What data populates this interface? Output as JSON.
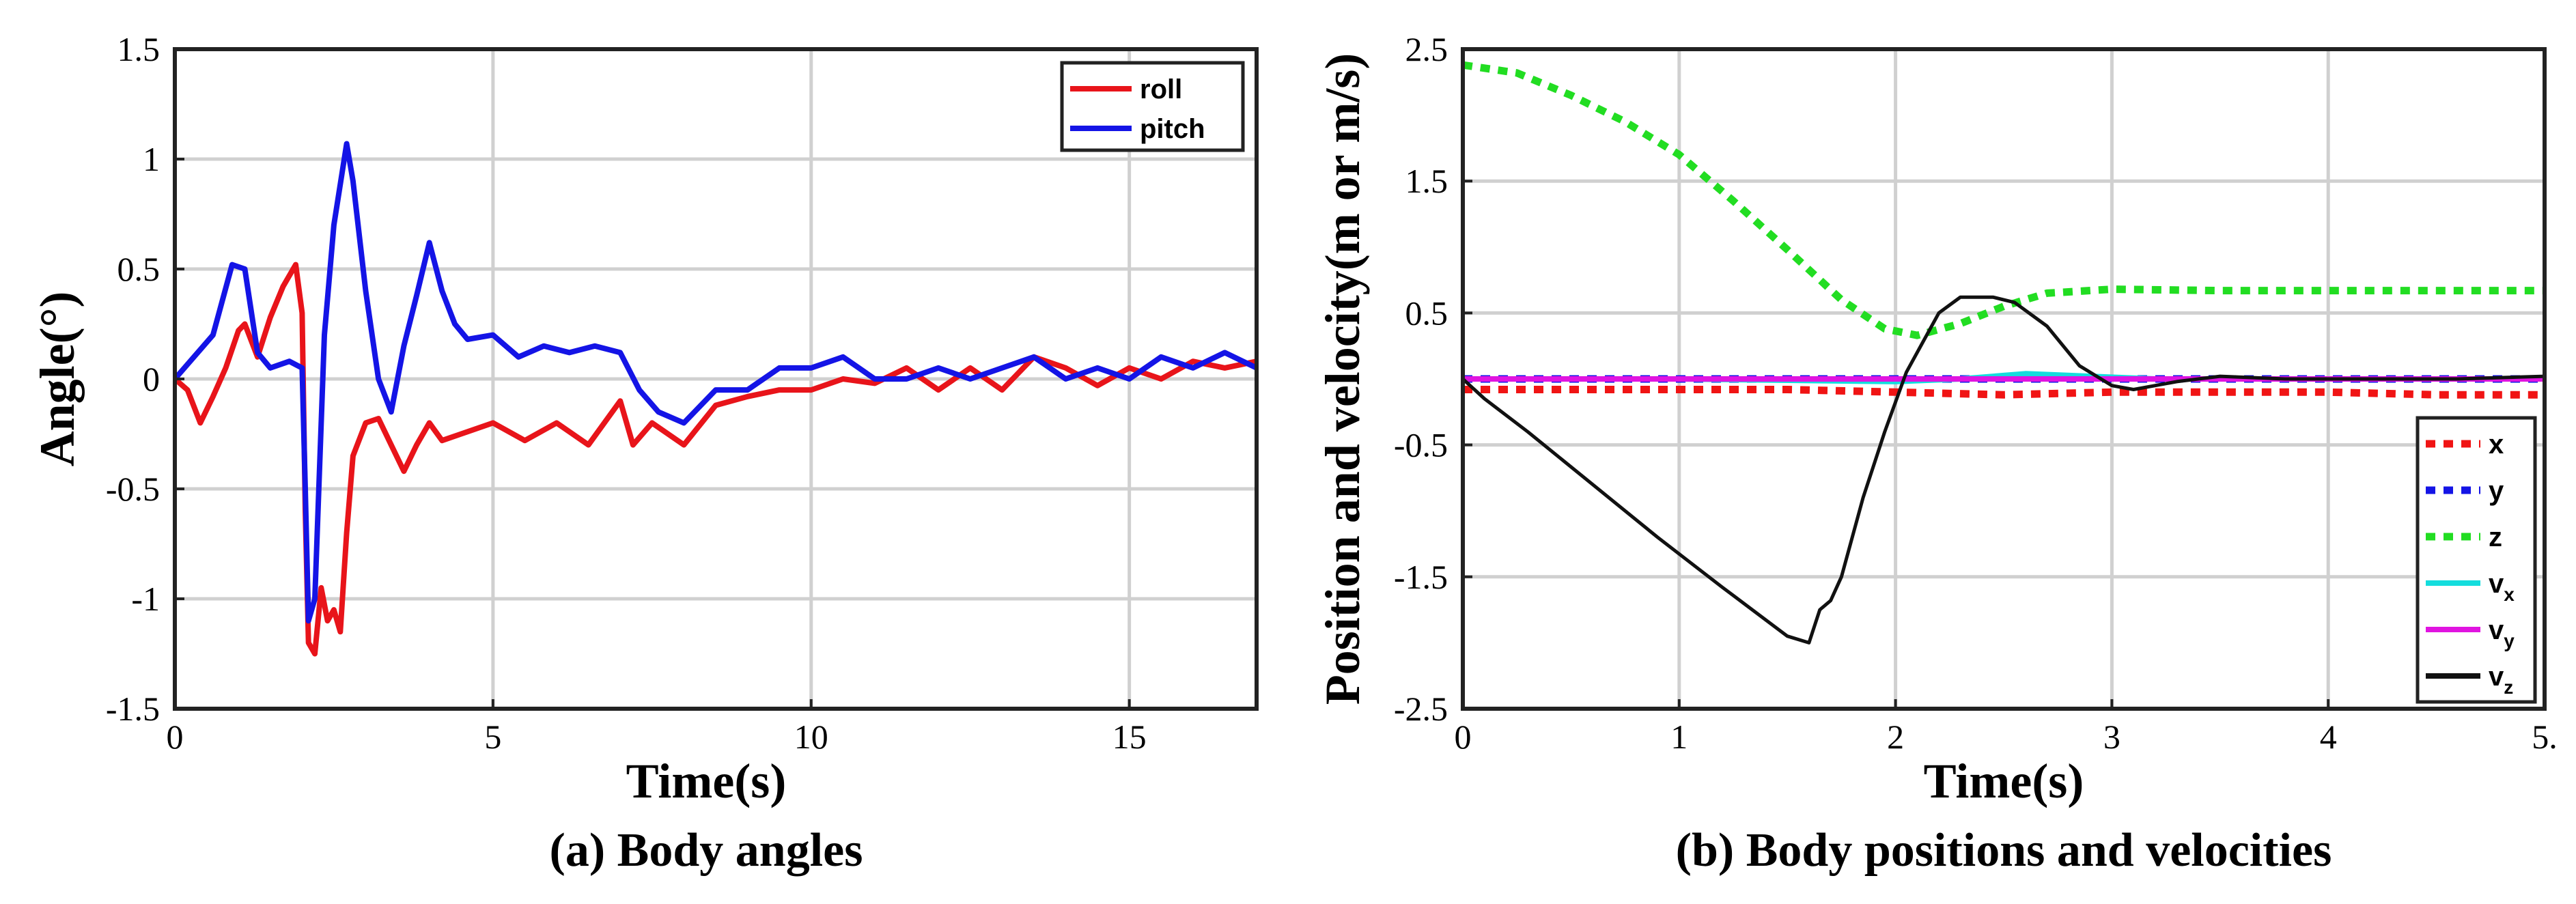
{
  "chart_data": [
    {
      "type": "line",
      "title": "",
      "caption": "(a) Body angles",
      "xlabel": "Time(s)",
      "ylabel": "Angle(°)",
      "xlim": [
        0,
        17
      ],
      "ylim": [
        -1.5,
        1.5
      ],
      "xticks": [
        0,
        5,
        10,
        15
      ],
      "yticks": [
        -1.5,
        -1,
        -0.5,
        0,
        0.5,
        1,
        1.5
      ],
      "xtick_labels": [
        "0",
        "5",
        "10",
        "15"
      ],
      "ytick_labels": [
        "-1.5",
        "-1",
        "-0.5",
        "0",
        "0.5",
        "1",
        "1.5"
      ],
      "grid": true,
      "legend_position": "top-right",
      "series": [
        {
          "name": "roll",
          "color": "#e8141a",
          "style": "solid",
          "x": [
            0,
            0.2,
            0.4,
            0.6,
            0.8,
            1.0,
            1.1,
            1.3,
            1.5,
            1.7,
            1.9,
            2.0,
            2.05,
            2.1,
            2.2,
            2.3,
            2.4,
            2.5,
            2.6,
            2.7,
            2.8,
            3.0,
            3.2,
            3.4,
            3.6,
            3.8,
            4.0,
            4.2,
            4.5,
            5.0,
            5.5,
            6.0,
            6.5,
            7.0,
            7.2,
            7.5,
            8.0,
            8.5,
            9.0,
            9.5,
            10.0,
            10.5,
            11.0,
            11.5,
            12.0,
            12.5,
            13.0,
            13.5,
            14.0,
            14.5,
            15.0,
            15.5,
            16.0,
            16.5,
            17.0
          ],
          "values": [
            0,
            -0.05,
            -0.2,
            -0.08,
            0.05,
            0.22,
            0.25,
            0.1,
            0.28,
            0.42,
            0.52,
            0.3,
            -0.6,
            -1.2,
            -1.25,
            -0.95,
            -1.1,
            -1.05,
            -1.15,
            -0.7,
            -0.35,
            -0.2,
            -0.18,
            -0.3,
            -0.42,
            -0.3,
            -0.2,
            -0.28,
            -0.25,
            -0.2,
            -0.28,
            -0.2,
            -0.3,
            -0.1,
            -0.3,
            -0.2,
            -0.3,
            -0.12,
            -0.08,
            -0.05,
            -0.05,
            0.0,
            -0.02,
            0.05,
            -0.05,
            0.05,
            -0.05,
            0.1,
            0.05,
            -0.03,
            0.05,
            0.0,
            0.08,
            0.05,
            0.08
          ]
        },
        {
          "name": "pitch",
          "color": "#1414e6",
          "style": "solid",
          "x": [
            0,
            0.3,
            0.6,
            0.9,
            1.1,
            1.3,
            1.5,
            1.8,
            2.0,
            2.05,
            2.1,
            2.2,
            2.35,
            2.5,
            2.7,
            2.8,
            3.0,
            3.2,
            3.4,
            3.6,
            3.8,
            4.0,
            4.2,
            4.4,
            4.6,
            5.0,
            5.4,
            5.8,
            6.2,
            6.6,
            7.0,
            7.3,
            7.6,
            8.0,
            8.5,
            9.0,
            9.5,
            10.0,
            10.5,
            11.0,
            11.5,
            12.0,
            12.5,
            13.0,
            13.5,
            14.0,
            14.5,
            15.0,
            15.5,
            16.0,
            16.5,
            17.0
          ],
          "values": [
            0,
            0.1,
            0.2,
            0.52,
            0.5,
            0.12,
            0.05,
            0.08,
            0.05,
            -0.5,
            -1.1,
            -1.0,
            0.2,
            0.7,
            1.07,
            0.9,
            0.4,
            0.0,
            -0.15,
            0.15,
            0.38,
            0.62,
            0.4,
            0.25,
            0.18,
            0.2,
            0.1,
            0.15,
            0.12,
            0.15,
            0.12,
            -0.05,
            -0.15,
            -0.2,
            -0.05,
            -0.05,
            0.05,
            0.05,
            0.1,
            0.0,
            0.0,
            0.05,
            0.0,
            0.05,
            0.1,
            0.0,
            0.05,
            0.0,
            0.1,
            0.05,
            0.12,
            0.05
          ]
        }
      ]
    },
    {
      "type": "line",
      "title": "",
      "caption": "(b) Body positions and velocities",
      "xlabel": "Time(s)",
      "ylabel": "Position and velocity(m or m/s)",
      "xlim": [
        0,
        5
      ],
      "ylim": [
        -2.5,
        2.5
      ],
      "xticks": [
        0,
        1,
        2,
        3,
        4,
        5
      ],
      "yticks": [
        -2.5,
        -1.5,
        -0.5,
        0.5,
        1.5,
        2.5
      ],
      "xtick_labels": [
        "0",
        "1",
        "2",
        "3",
        "4",
        "5."
      ],
      "ytick_labels": [
        "-2.5",
        "-1.5",
        "-0.5",
        "0.5",
        "1.5",
        "2.5"
      ],
      "grid": true,
      "legend_position": "bottom-right",
      "series": [
        {
          "name": "x",
          "sub": "",
          "color": "#f01414",
          "style": "dotted",
          "x": [
            0,
            0.5,
            1.0,
            1.5,
            2.0,
            2.5,
            3.0,
            3.5,
            4.0,
            4.5,
            5.0
          ],
          "values": [
            -0.08,
            -0.08,
            -0.08,
            -0.08,
            -0.1,
            -0.12,
            -0.1,
            -0.1,
            -0.1,
            -0.12,
            -0.12
          ]
        },
        {
          "name": "y",
          "sub": "",
          "color": "#1414e6",
          "style": "dotted",
          "x": [
            0,
            1.0,
            2.0,
            3.0,
            4.0,
            5.0
          ],
          "values": [
            0,
            0,
            0,
            0,
            0,
            0
          ]
        },
        {
          "name": "z",
          "sub": "",
          "color": "#22dd22",
          "style": "dotted",
          "x": [
            0,
            0.25,
            0.5,
            0.75,
            1.0,
            1.25,
            1.5,
            1.75,
            1.95,
            2.1,
            2.3,
            2.5,
            2.7,
            3.0,
            3.5,
            4.0,
            4.5,
            5.0
          ],
          "values": [
            2.38,
            2.32,
            2.15,
            1.95,
            1.7,
            1.35,
            0.98,
            0.6,
            0.38,
            0.33,
            0.42,
            0.55,
            0.65,
            0.68,
            0.67,
            0.67,
            0.67,
            0.67
          ],
          "smooth": true
        },
        {
          "name": "v",
          "sub": "x",
          "color": "#14dddd",
          "style": "solid",
          "x": [
            0,
            1.0,
            2.0,
            2.3,
            2.6,
            2.9,
            3.2,
            4.0,
            5.0
          ],
          "values": [
            0,
            0,
            -0.02,
            0.0,
            0.04,
            0.02,
            0.0,
            0.0,
            0.0
          ]
        },
        {
          "name": "v",
          "sub": "y",
          "color": "#e014e0",
          "style": "solid",
          "x": [
            0,
            1.0,
            2.0,
            3.0,
            4.0,
            5.0
          ],
          "values": [
            0.0,
            0.0,
            0.0,
            0.0,
            0.0,
            0.0
          ]
        },
        {
          "name": "v",
          "sub": "z",
          "color": "#111111",
          "style": "solid",
          "x": [
            0,
            0.1,
            0.3,
            0.6,
            0.9,
            1.2,
            1.5,
            1.6,
            1.62,
            1.65,
            1.7,
            1.75,
            1.85,
            1.95,
            2.05,
            2.15,
            2.2,
            2.3,
            2.45,
            2.55,
            2.7,
            2.85,
            3.0,
            3.1,
            3.2,
            3.3,
            3.5,
            3.8,
            4.2,
            4.6,
            5.0
          ],
          "values": [
            0,
            -0.15,
            -0.4,
            -0.8,
            -1.2,
            -1.58,
            -1.95,
            -2.0,
            -1.9,
            -1.75,
            -1.68,
            -1.5,
            -0.9,
            -0.4,
            0.05,
            0.35,
            0.5,
            0.62,
            0.62,
            0.58,
            0.4,
            0.1,
            -0.05,
            -0.08,
            -0.05,
            -0.02,
            0.02,
            0.0,
            0.0,
            0.0,
            0.02
          ]
        }
      ]
    }
  ]
}
